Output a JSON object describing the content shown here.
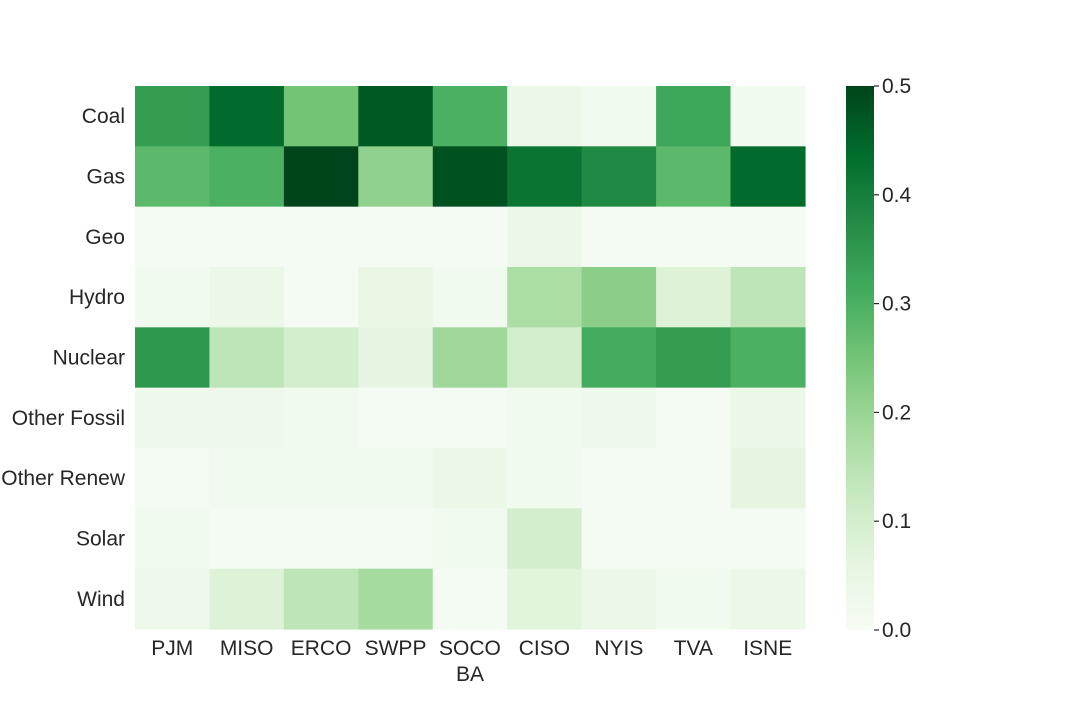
{
  "chart_data": {
    "type": "heatmap",
    "title": "",
    "xlabel": "BA",
    "ylabel": "",
    "x_categories": [
      "PJM",
      "MISO",
      "ERCO",
      "SWPP",
      "SOCO",
      "CISO",
      "NYIS",
      "TVA",
      "ISNE"
    ],
    "y_categories": [
      "Coal",
      "Gas",
      "Geo",
      "Hydro",
      "Nuclear",
      "Other Fossil",
      "Other Renew",
      "Solar",
      "Wind"
    ],
    "values": [
      [
        0.34,
        0.44,
        0.25,
        0.47,
        0.3,
        0.04,
        0.02,
        0.32,
        0.02
      ],
      [
        0.28,
        0.3,
        0.5,
        0.21,
        0.48,
        0.42,
        0.38,
        0.28,
        0.44
      ],
      [
        0.01,
        0.01,
        0.01,
        0.01,
        0.01,
        0.04,
        0.01,
        0.01,
        0.01
      ],
      [
        0.02,
        0.04,
        0.01,
        0.05,
        0.02,
        0.17,
        0.22,
        0.08,
        0.14
      ],
      [
        0.35,
        0.14,
        0.1,
        0.06,
        0.19,
        0.1,
        0.31,
        0.34,
        0.3
      ],
      [
        0.03,
        0.03,
        0.02,
        0.01,
        0.01,
        0.02,
        0.03,
        0.01,
        0.04
      ],
      [
        0.01,
        0.02,
        0.02,
        0.02,
        0.04,
        0.02,
        0.01,
        0.01,
        0.06
      ],
      [
        0.02,
        0.01,
        0.01,
        0.01,
        0.02,
        0.1,
        0.01,
        0.01,
        0.01
      ],
      [
        0.03,
        0.08,
        0.14,
        0.18,
        0.01,
        0.07,
        0.04,
        0.02,
        0.04
      ]
    ],
    "colorbar": {
      "range": [
        0.0,
        0.5
      ],
      "ticks": [
        "0.0",
        "0.1",
        "0.2",
        "0.3",
        "0.4",
        "0.5"
      ],
      "colormap": "Greens"
    },
    "grid": false
  }
}
